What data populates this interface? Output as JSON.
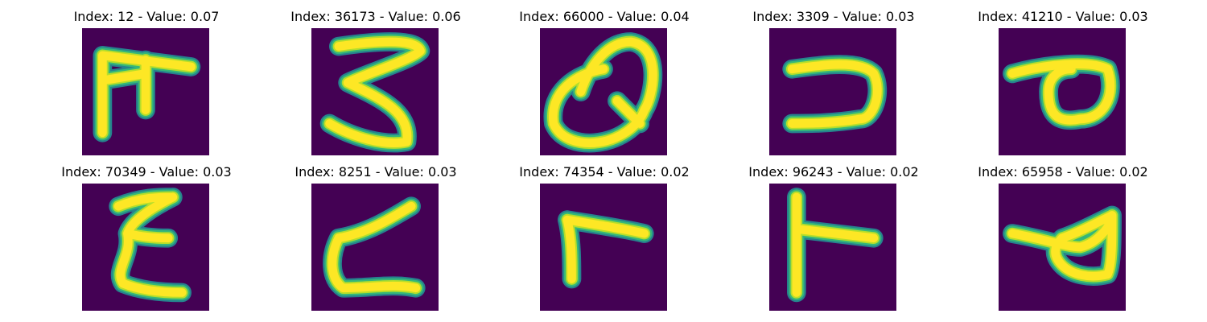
{
  "colors": {
    "background": "#440154",
    "stroke_core": "#fde725",
    "stroke_mid": "#b5de2b",
    "stroke_edge": "#35b779",
    "stroke_outer": "#26828e"
  },
  "panels": [
    {
      "title": "Index: 12 - Value: 0.07",
      "glyph": "E-like"
    },
    {
      "title": "Index: 36173 - Value: 0.06",
      "glyph": "3-like"
    },
    {
      "title": "Index: 66000 - Value: 0.04",
      "glyph": "Q-like"
    },
    {
      "title": "Index: 3309 - Value: 0.03",
      "glyph": "reversed-C"
    },
    {
      "title": "Index: 41210 - Value: 0.03",
      "glyph": "a-like"
    },
    {
      "title": "Index: 70349 - Value: 0.03",
      "glyph": "E-like"
    },
    {
      "title": "Index: 8251 - Value: 0.03",
      "glyph": "Z-like"
    },
    {
      "title": "Index: 74354 - Value: 0.02",
      "glyph": "r-like"
    },
    {
      "title": "Index: 96243 - Value: 0.02",
      "glyph": "T-like"
    },
    {
      "title": "Index: 65958 - Value: 0.02",
      "glyph": "a-like"
    }
  ]
}
